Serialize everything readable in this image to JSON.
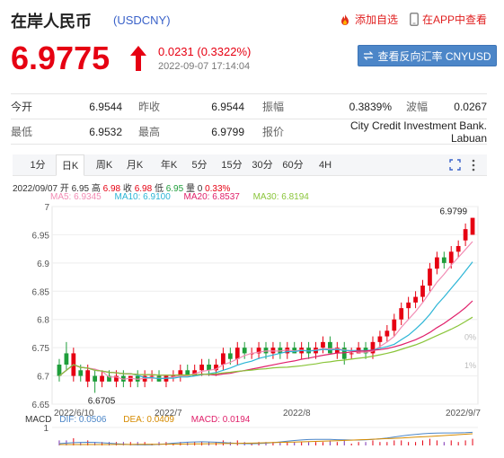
{
  "header": {
    "name": "在岸人民币",
    "code": "(USDCNY)",
    "add_fav": "添加自选",
    "open_app": "在APP中查看"
  },
  "price": {
    "last": "6.9775",
    "change": "0.0231 (0.3322%)",
    "timestamp": "2022-09-07 17:14:04",
    "reverse_button": "查看反向汇率 CNYUSD"
  },
  "quote_rows": [
    [
      {
        "label": "今开",
        "value": "6.9544"
      },
      {
        "label": "昨收",
        "value": "6.9544"
      },
      {
        "label": "振幅",
        "value": "0.3839%"
      },
      {
        "label": "波幅",
        "value": "0.0267"
      }
    ],
    [
      {
        "label": "最低",
        "value": "6.9532"
      },
      {
        "label": "最高",
        "value": "6.9799"
      },
      {
        "label": "报价",
        "value": "City Credit Investment Bank. Labuan"
      }
    ]
  ],
  "tabs": [
    "1分",
    "日K",
    "周K",
    "月K",
    "年K",
    "5分",
    "15分",
    "30分",
    "60分",
    "4H"
  ],
  "active_tab": "日K",
  "ohlc_info": {
    "date": "2022/09/07",
    "open_label": "开",
    "open": "6.95",
    "high_label": "高",
    "high": "6.98",
    "close_label": "收",
    "close": "6.98",
    "low_label": "低",
    "low": "6.95",
    "volume_label": "量",
    "volume": "0",
    "pct": "0.33%"
  },
  "ma_legend": [
    {
      "label": "MA5: 6.9345",
      "color": "#f28cb4"
    },
    {
      "label": "MA10: 6.9100",
      "color": "#2cb5d6"
    },
    {
      "label": "MA20: 6.8537",
      "color": "#e0206a"
    },
    {
      "label": "MA30: 6.8194",
      "color": "#8ac53a"
    }
  ],
  "macd": {
    "title": "MACD",
    "dif": "DIF: 0.0506",
    "dea": "DEA: 0.0409",
    "macd": "MACD: 0.0194",
    "axis_label": "1"
  },
  "colors": {
    "up": "#e60012",
    "down": "#1e9e3a",
    "link": "#3a62c9",
    "button": "#4c86c8"
  },
  "chart_data": {
    "type": "candlestick",
    "y_ticks": [
      "7",
      "6.95",
      "6.9",
      "6.85",
      "6.8",
      "6.75",
      "6.7",
      "6.65"
    ],
    "y_values": [
      7.0,
      6.95,
      6.9,
      6.85,
      6.8,
      6.75,
      6.7,
      6.65
    ],
    "pct_ticks": [
      "1%",
      "0%"
    ],
    "x_labels": [
      "2022/6/10",
      "2022/7",
      "2022/8",
      "2022/9/7"
    ],
    "ylim": [
      6.65,
      7.0
    ],
    "max_label": "6.9799",
    "min_label": "6.6705",
    "candles": [
      [
        6.72,
        6.7,
        6.73,
        6.69
      ],
      [
        6.74,
        6.72,
        6.76,
        6.71
      ],
      [
        6.7,
        6.74,
        6.75,
        6.69
      ],
      [
        6.71,
        6.7,
        6.72,
        6.69
      ],
      [
        6.69,
        6.71,
        6.72,
        6.68
      ],
      [
        6.7,
        6.69,
        6.71,
        6.67
      ],
      [
        6.69,
        6.7,
        6.71,
        6.68
      ],
      [
        6.7,
        6.69,
        6.71,
        6.69
      ],
      [
        6.69,
        6.7,
        6.71,
        6.68
      ],
      [
        6.7,
        6.69,
        6.71,
        6.68
      ],
      [
        6.69,
        6.7,
        6.7,
        6.68
      ],
      [
        6.7,
        6.69,
        6.71,
        6.68
      ],
      [
        6.69,
        6.7,
        6.71,
        6.68
      ],
      [
        6.7,
        6.7,
        6.71,
        6.69
      ],
      [
        6.7,
        6.69,
        6.71,
        6.69
      ],
      [
        6.69,
        6.7,
        6.7,
        6.68
      ],
      [
        6.7,
        6.7,
        6.71,
        6.69
      ],
      [
        6.7,
        6.71,
        6.72,
        6.69
      ],
      [
        6.71,
        6.7,
        6.72,
        6.7
      ],
      [
        6.7,
        6.71,
        6.72,
        6.7
      ],
      [
        6.71,
        6.72,
        6.73,
        6.7
      ],
      [
        6.72,
        6.71,
        6.73,
        6.7
      ],
      [
        6.71,
        6.72,
        6.73,
        6.7
      ],
      [
        6.72,
        6.74,
        6.75,
        6.71
      ],
      [
        6.74,
        6.73,
        6.75,
        6.72
      ],
      [
        6.73,
        6.75,
        6.76,
        6.72
      ],
      [
        6.75,
        6.74,
        6.76,
        6.73
      ],
      [
        6.74,
        6.74,
        6.75,
        6.73
      ],
      [
        6.74,
        6.75,
        6.76,
        6.73
      ],
      [
        6.75,
        6.74,
        6.76,
        6.73
      ],
      [
        6.74,
        6.75,
        6.76,
        6.73
      ],
      [
        6.75,
        6.74,
        6.76,
        6.73
      ],
      [
        6.74,
        6.75,
        6.76,
        6.73
      ],
      [
        6.75,
        6.74,
        6.76,
        6.74
      ],
      [
        6.74,
        6.75,
        6.76,
        6.73
      ],
      [
        6.75,
        6.74,
        6.76,
        6.73
      ],
      [
        6.74,
        6.75,
        6.76,
        6.73
      ],
      [
        6.75,
        6.76,
        6.77,
        6.74
      ],
      [
        6.76,
        6.74,
        6.77,
        6.74
      ],
      [
        6.74,
        6.75,
        6.76,
        6.73
      ],
      [
        6.75,
        6.73,
        6.76,
        6.72
      ],
      [
        6.74,
        6.74,
        6.75,
        6.73
      ],
      [
        6.74,
        6.75,
        6.76,
        6.74
      ],
      [
        6.75,
        6.74,
        6.76,
        6.73
      ],
      [
        6.74,
        6.76,
        6.77,
        6.73
      ],
      [
        6.76,
        6.77,
        6.78,
        6.75
      ],
      [
        6.77,
        6.78,
        6.79,
        6.76
      ],
      [
        6.78,
        6.8,
        6.81,
        6.77
      ],
      [
        6.8,
        6.82,
        6.83,
        6.79
      ],
      [
        6.82,
        6.83,
        6.84,
        6.8
      ],
      [
        6.83,
        6.84,
        6.85,
        6.82
      ],
      [
        6.84,
        6.86,
        6.87,
        6.83
      ],
      [
        6.86,
        6.89,
        6.9,
        6.85
      ],
      [
        6.89,
        6.91,
        6.92,
        6.88
      ],
      [
        6.91,
        6.9,
        6.92,
        6.89
      ],
      [
        6.9,
        6.92,
        6.93,
        6.89
      ],
      [
        6.92,
        6.93,
        6.94,
        6.91
      ],
      [
        6.94,
        6.96,
        6.97,
        6.93
      ],
      [
        6.95,
        6.98,
        6.98,
        6.95
      ]
    ]
  }
}
